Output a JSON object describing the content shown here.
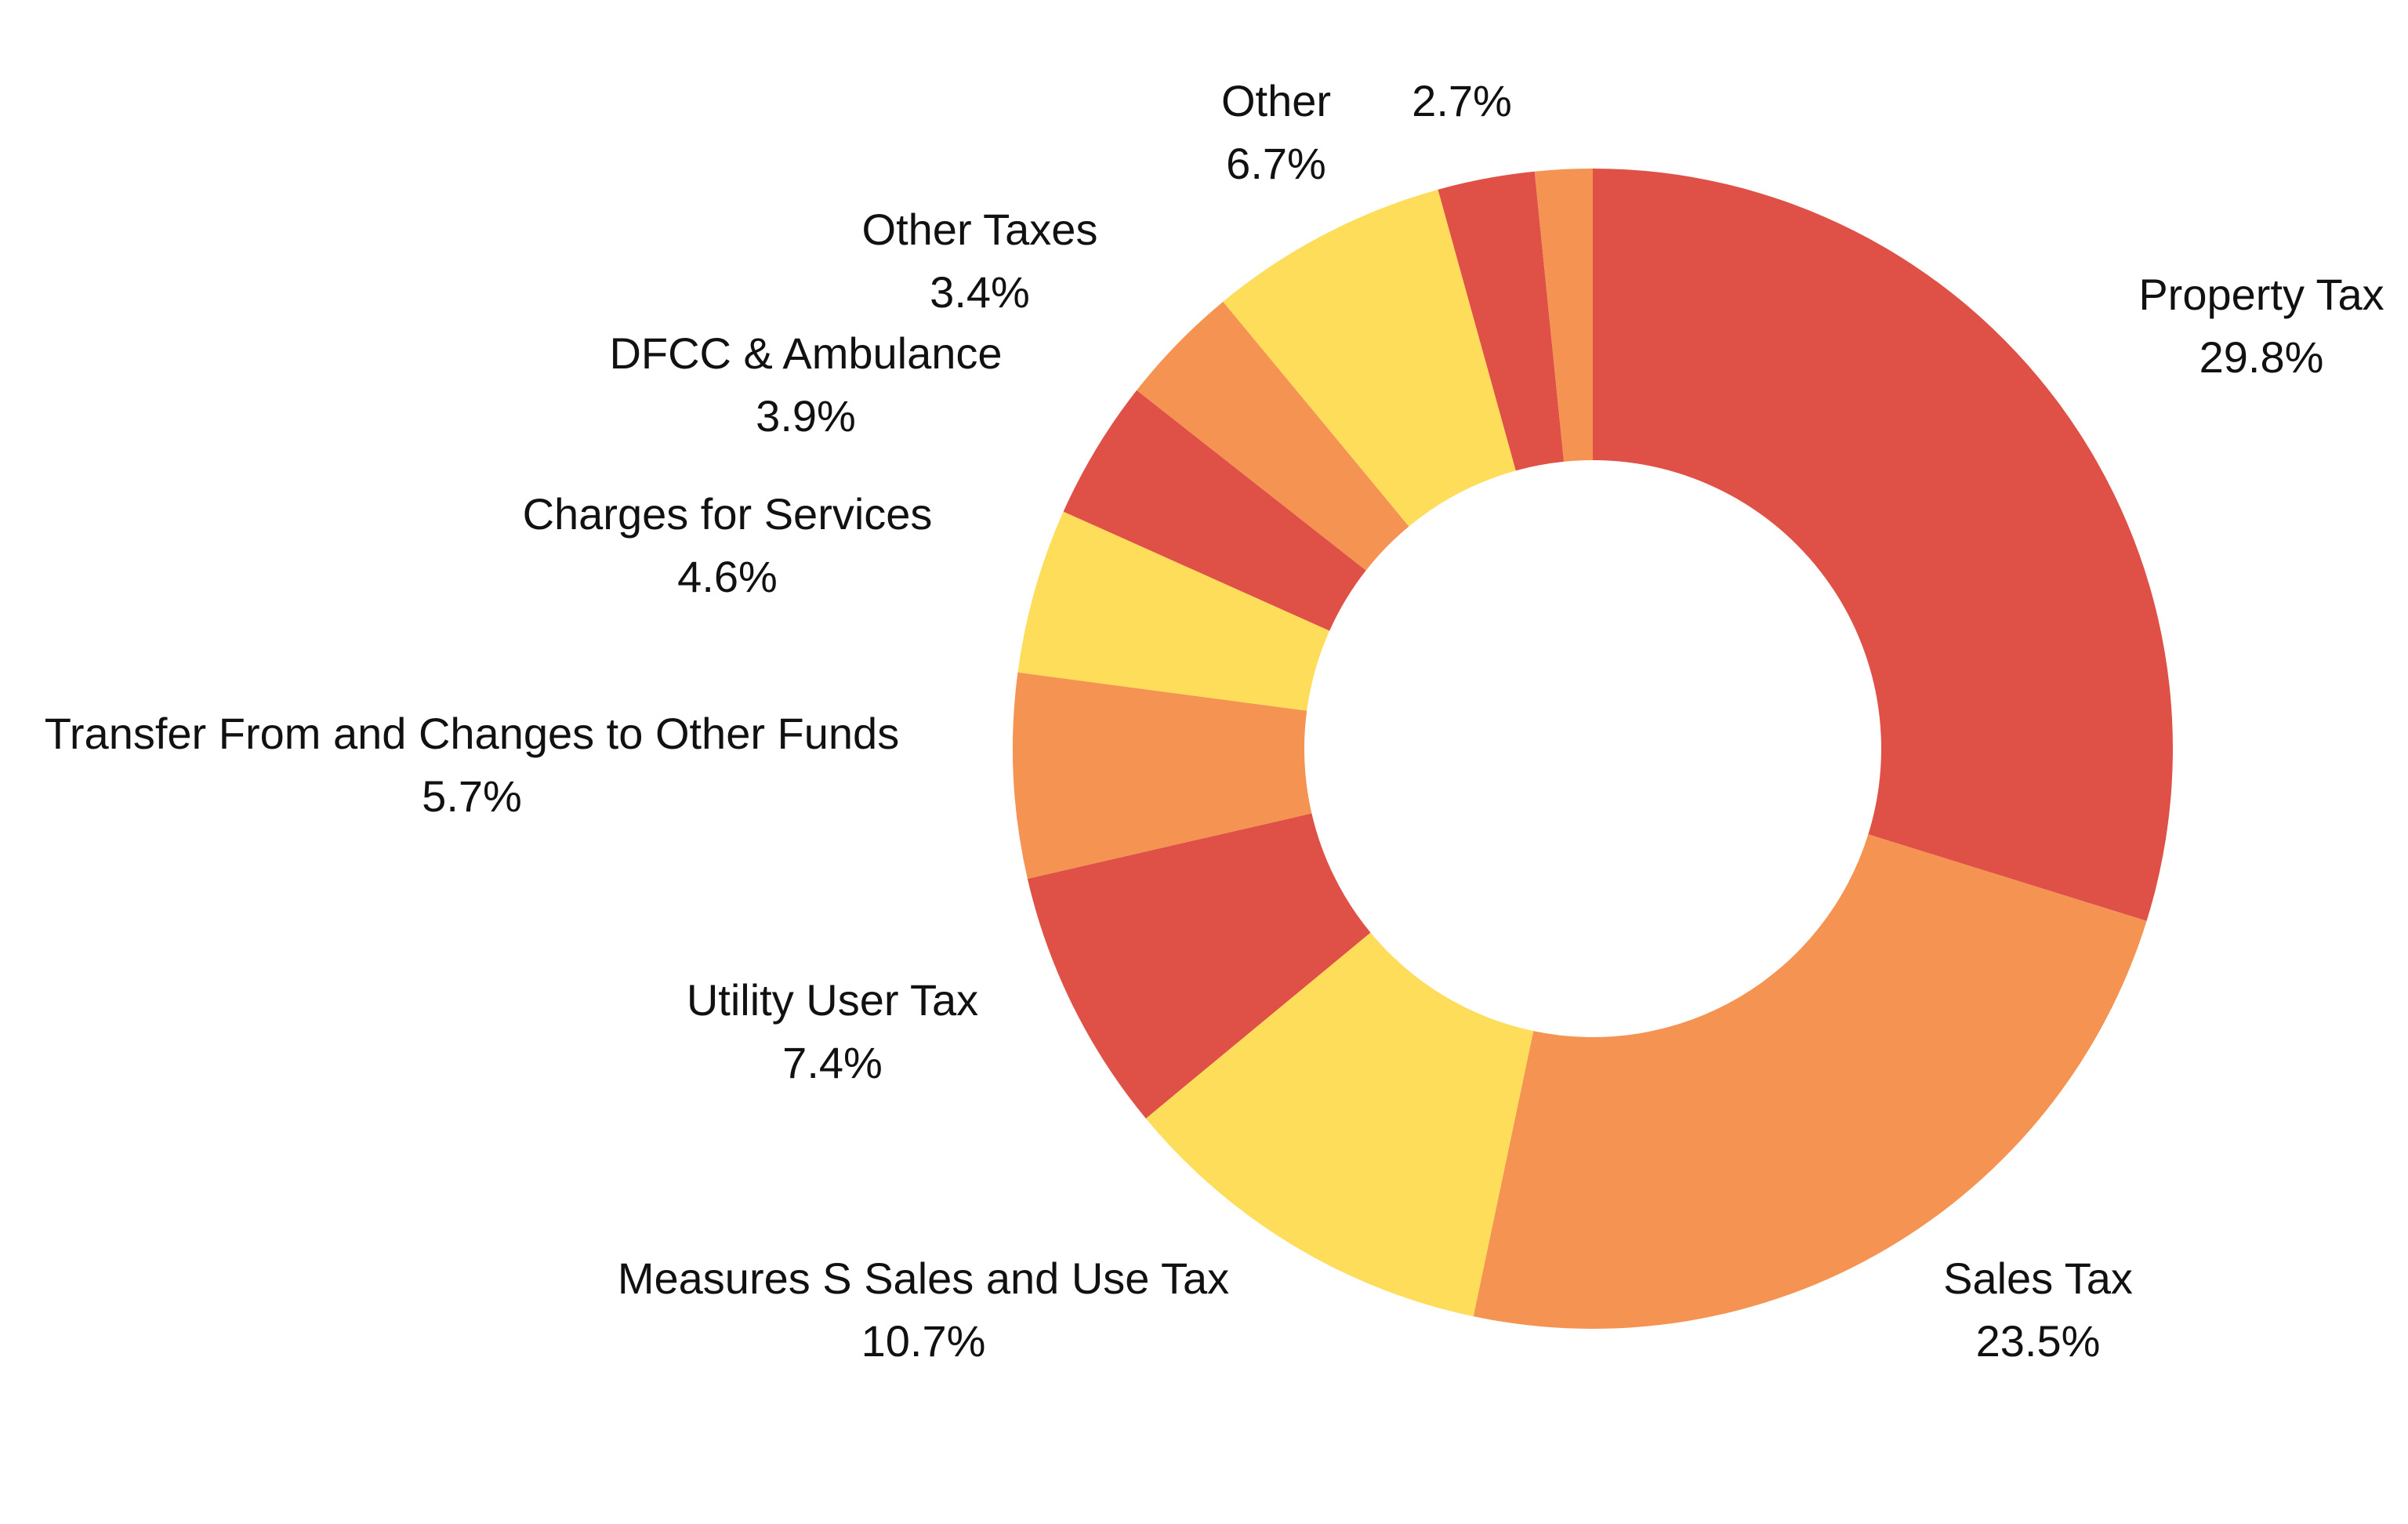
{
  "chart_data": {
    "type": "pie",
    "variant": "donut",
    "title": "",
    "slices": [
      {
        "label": "Property Tax",
        "percent_text": "29.8%",
        "value": 29.8,
        "color": "#df5146"
      },
      {
        "label": "Sales Tax",
        "percent_text": "23.5%",
        "value": 23.5,
        "color": "#f59352"
      },
      {
        "label": "Measures S Sales and Use Tax",
        "percent_text": "10.7%",
        "value": 10.7,
        "color": "#fedd5a"
      },
      {
        "label": "Utility User Tax",
        "percent_text": "7.4%",
        "value": 7.4,
        "color": "#df5146"
      },
      {
        "label": "Transfer From and Changes to Other Funds",
        "percent_text": "5.7%",
        "value": 5.7,
        "color": "#f59352"
      },
      {
        "label": "Charges for Services",
        "percent_text": "4.6%",
        "value": 4.6,
        "color": "#fedd5a"
      },
      {
        "label": "DFCC & Ambulance",
        "percent_text": "3.9%",
        "value": 3.9,
        "color": "#df5146"
      },
      {
        "label": "Other Taxes",
        "percent_text": "3.4%",
        "value": 3.4,
        "color": "#f59352"
      },
      {
        "label": "Other",
        "percent_text": "6.7%",
        "value": 6.7,
        "color": "#fedd5a"
      },
      {
        "label": "",
        "percent_text": "2.7%",
        "value": 2.7,
        "color": "#df5146"
      },
      {
        "label": "",
        "percent_text": "",
        "value": 1.6,
        "color": "#f59352"
      }
    ],
    "start_angle_deg": 0,
    "direction": "clockwise"
  }
}
